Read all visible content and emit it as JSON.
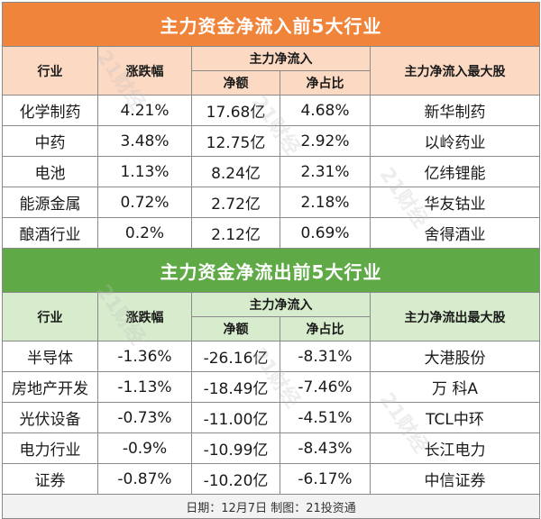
{
  "inflow": {
    "title": "主力资金净流入前5大行业",
    "headers": {
      "industry": "行业",
      "change": "涨跌幅",
      "main_flow": "主力净流入",
      "net_amount": "净额",
      "net_ratio": "净占比",
      "top_stock": "主力净流入最大股"
    },
    "rows": [
      {
        "industry": "化学制药",
        "change": "4.21%",
        "net_amount": "17.68亿",
        "net_ratio": "4.68%",
        "top_stock": "新华制药"
      },
      {
        "industry": "中药",
        "change": "3.48%",
        "net_amount": "12.75亿",
        "net_ratio": "2.92%",
        "top_stock": "以岭药业"
      },
      {
        "industry": "电池",
        "change": "1.13%",
        "net_amount": "8.24亿",
        "net_ratio": "2.31%",
        "top_stock": "亿纬锂能"
      },
      {
        "industry": "能源金属",
        "change": "0.72%",
        "net_amount": "2.72亿",
        "net_ratio": "2.18%",
        "top_stock": "华友钴业"
      },
      {
        "industry": "酿酒行业",
        "change": "0.2%",
        "net_amount": "2.12亿",
        "net_ratio": "0.69%",
        "top_stock": "舍得酒业"
      }
    ]
  },
  "outflow": {
    "title": "主力资金净流出前5大行业",
    "headers": {
      "industry": "行业",
      "change": "涨跌幅",
      "main_flow": "主力净流入",
      "net_amount": "净额",
      "net_ratio": "净占比",
      "top_stock": "主力净流出最大股"
    },
    "rows": [
      {
        "industry": "半导体",
        "change": "-1.36%",
        "net_amount": "-26.16亿",
        "net_ratio": "-8.31%",
        "top_stock": "大港股份"
      },
      {
        "industry": "房地产开发",
        "change": "-1.13%",
        "net_amount": "-18.49亿",
        "net_ratio": "-7.46%",
        "top_stock": "万 科A"
      },
      {
        "industry": "光伏设备",
        "change": "-0.73%",
        "net_amount": "-11.00亿",
        "net_ratio": "-4.51%",
        "top_stock": "TCL中环"
      },
      {
        "industry": "电力行业",
        "change": "-0.9%",
        "net_amount": "-10.99亿",
        "net_ratio": "-8.43%",
        "top_stock": "长江电力"
      },
      {
        "industry": "证券",
        "change": "-0.87%",
        "net_amount": "-10.20亿",
        "net_ratio": "-6.17%",
        "top_stock": "中信证券"
      }
    ]
  },
  "footer": "日期：12月7日 制图：21投资通",
  "watermark": "21财经",
  "colors": {
    "inflow_title_bg": "#f0843b",
    "inflow_header_bg": "#fcd9c3",
    "outflow_title_bg": "#5faa47",
    "outflow_header_bg": "#d6eccc"
  }
}
